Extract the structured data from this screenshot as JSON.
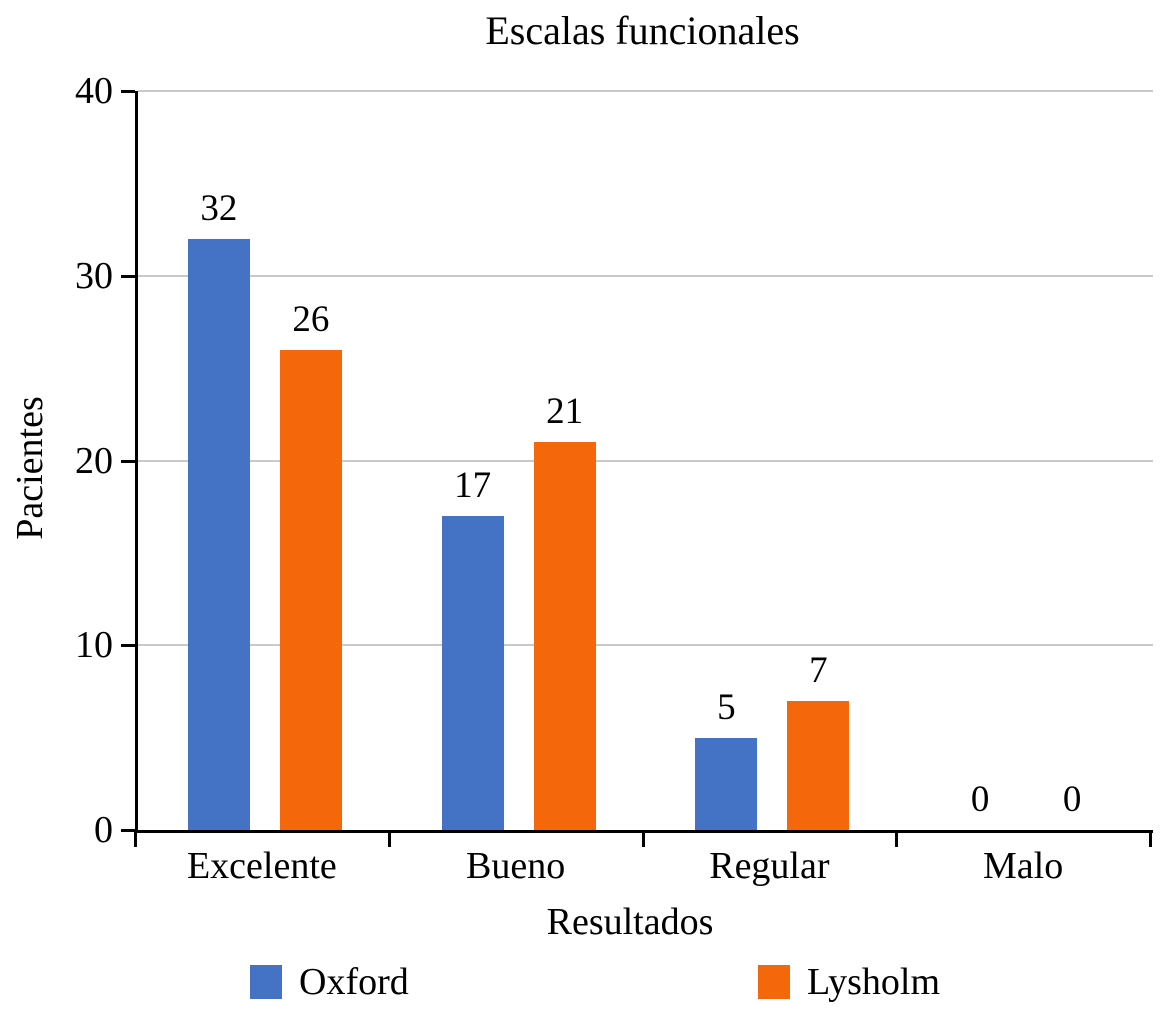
{
  "chart_data": {
    "type": "bar",
    "title": "Escalas funcionales",
    "xlabel": "Resultados",
    "ylabel": "Pacientes",
    "categories": [
      "Excelente",
      "Bueno",
      "Regular",
      "Malo"
    ],
    "series": [
      {
        "name": "Oxford",
        "color": "#4472C4",
        "values": [
          32,
          17,
          5,
          0
        ]
      },
      {
        "name": "Lysholm",
        "color": "#F4670B",
        "values": [
          26,
          21,
          7,
          0
        ]
      }
    ],
    "ylim": [
      0,
      40
    ],
    "yticks": [
      0,
      10,
      20,
      30,
      40
    ],
    "grid": "horizontal",
    "gridline_color": "#C9C9C9",
    "axis_color": "#000000",
    "value_labels": true,
    "legend_position": "bottom"
  }
}
